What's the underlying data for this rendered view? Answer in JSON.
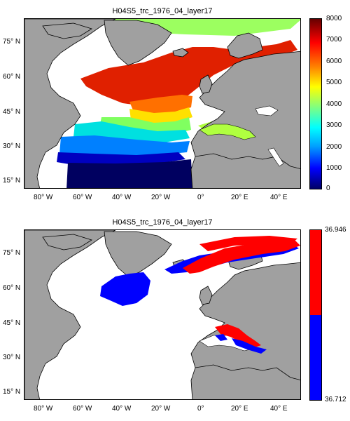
{
  "chart_data": [
    {
      "type": "heatmap",
      "title": "H04S5_trc_1976_04_layer17",
      "x_ticks": [
        "80° W",
        "60° W",
        "40° W",
        "20° W",
        "0°",
        "20° E",
        "40° E"
      ],
      "y_ticks": [
        "75° N",
        "60° N",
        "45° N",
        "30° N",
        "15° N"
      ],
      "colorbar": {
        "min": 0,
        "max": 8000,
        "ticks": [
          "8000",
          "7000",
          "6000",
          "5000",
          "4000",
          "3000",
          "2000",
          "1000",
          "0"
        ]
      },
      "colormap": [
        "#000066",
        "#0000ff",
        "#00a0ff",
        "#00ffff",
        "#80ff80",
        "#ffff00",
        "#ff8000",
        "#ff0000",
        "#660000"
      ],
      "land_color": "#a0a0a0",
      "grid": false
    },
    {
      "type": "heatmap",
      "title": "H04S5_trc_1976_04_layer17",
      "x_ticks": [
        "80° W",
        "60° W",
        "40° W",
        "20° W",
        "0°",
        "20° E",
        "40° E"
      ],
      "y_ticks": [
        "75° N",
        "60° N",
        "45° N",
        "30° N",
        "15° N"
      ],
      "colorbar": {
        "min": 36.712,
        "max": 36.946,
        "ticks": [
          "36.946",
          "36.712"
        ]
      },
      "colormap": [
        "#0000ff",
        "#ff0000"
      ],
      "land_color": "#a0a0a0",
      "grid": false
    }
  ]
}
